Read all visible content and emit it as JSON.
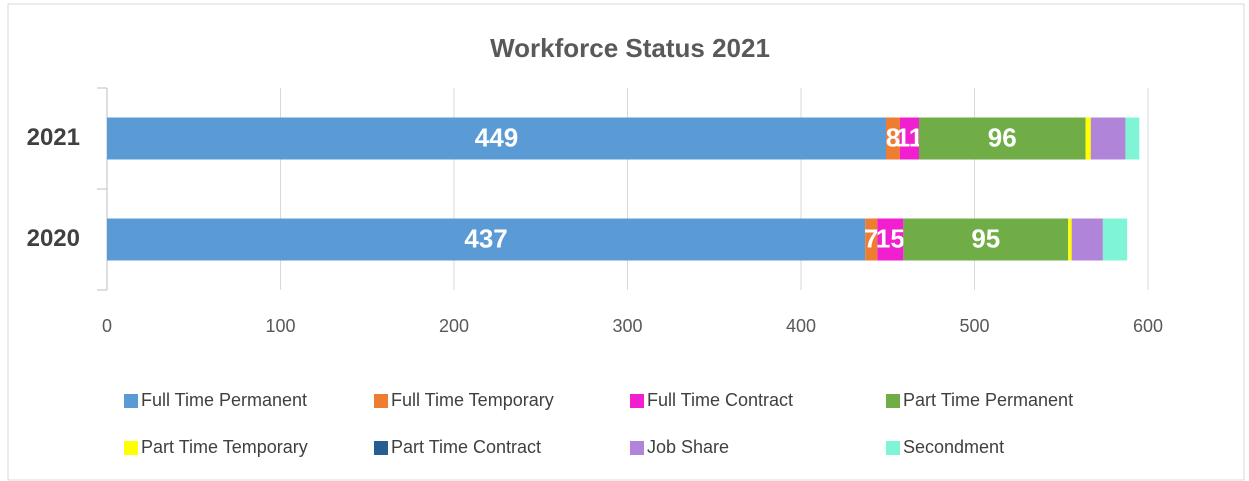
{
  "chart_data": {
    "type": "stacked-barh",
    "title": "Workforce Status 2021",
    "categories": [
      "2021",
      "2020"
    ],
    "series": [
      {
        "name": "Full Time Permanent",
        "color": "#5b9bd5",
        "values": [
          449,
          437
        ],
        "data_labels": true
      },
      {
        "name": "Full Time Temporary",
        "color": "#ed7d31",
        "values": [
          8,
          7
        ],
        "data_labels": true
      },
      {
        "name": "Full Time Contract",
        "color": "#f01fcf",
        "values": [
          11,
          15
        ],
        "data_labels": true
      },
      {
        "name": "Part Time Permanent",
        "color": "#70ad47",
        "values": [
          96,
          95
        ],
        "data_labels": true
      },
      {
        "name": "Part Time Temporary",
        "color": "#ffff00",
        "values": [
          3,
          2
        ]
      },
      {
        "name": "Part Time Contract",
        "color": "#255e91",
        "values": [
          0,
          0
        ]
      },
      {
        "name": "Job Share",
        "color": "#b084d8",
        "values": [
          20,
          18
        ]
      },
      {
        "name": "Secondment",
        "color": "#7ff5d5",
        "values": [
          8,
          14
        ]
      }
    ],
    "xlim": [
      0,
      600
    ],
    "xticks": [
      0,
      100,
      200,
      300,
      400,
      500,
      600
    ],
    "grid": true,
    "legend": "bottom"
  }
}
